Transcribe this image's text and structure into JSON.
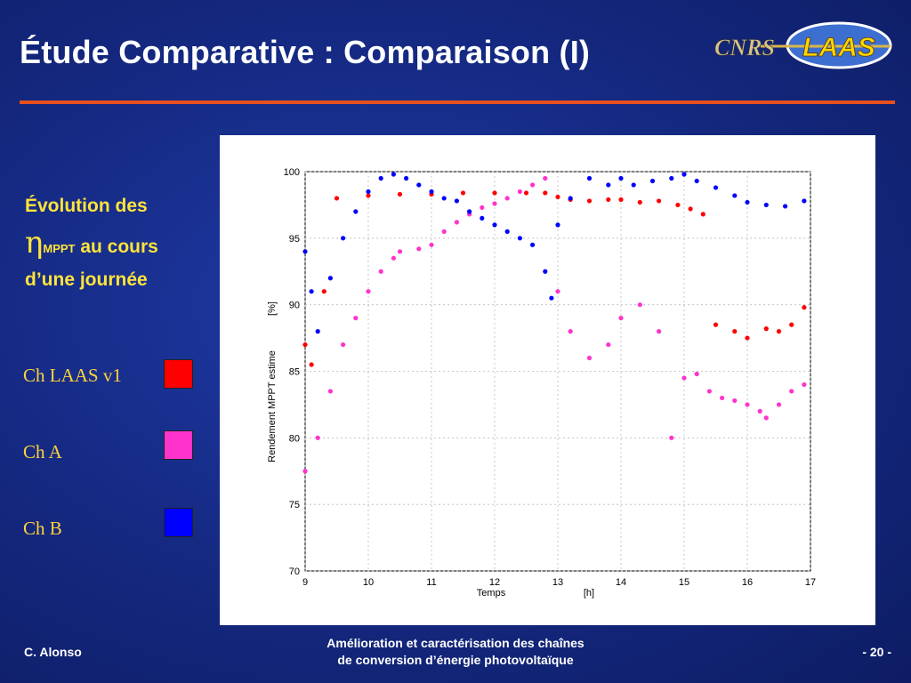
{
  "slide": {
    "title": "Étude Comparative : Comparaison (I)",
    "heading_line1": "Évolution des",
    "heading_symbol": "η",
    "heading_subscript": "MPPT",
    "heading_line2_tail": " au cours",
    "heading_line3": "d’une journée",
    "logo_text_left": "CNRS",
    "logo_text_right": "LAAS",
    "footer_author": "C. Alonso",
    "footer_title_line1": "Amélioration et caractérisation des chaînes",
    "footer_title_line2": "de conversion d’énergie photovoltaïque",
    "footer_page": "- 20 -"
  },
  "legend": [
    {
      "label": "Ch LAAS v1",
      "color": "#ff0000"
    },
    {
      "label": "Ch A",
      "color": "#ff33cc"
    },
    {
      "label": "Ch B",
      "color": "#0000ff"
    }
  ],
  "chart_data": {
    "type": "scatter",
    "xlabel": "Temps",
    "xunit": "[h]",
    "ylabel": "Rendement MPPT estime",
    "yunit": "[%]",
    "xlim": [
      9,
      17
    ],
    "ylim": [
      70,
      100
    ],
    "x_ticks": [
      9,
      10,
      11,
      12,
      13,
      14,
      15,
      16,
      17
    ],
    "y_ticks": [
      70,
      75,
      80,
      85,
      90,
      95,
      100
    ],
    "grid": true,
    "series": [
      {
        "name": "Ch LAAS v1",
        "color": "#ff0000",
        "x": [
          9.0,
          9.1,
          9.3,
          9.5,
          10.0,
          10.5,
          11.0,
          11.5,
          12.0,
          12.5,
          12.8,
          13.0,
          13.2,
          13.5,
          13.8,
          14.0,
          14.3,
          14.6,
          14.9,
          15.1,
          15.3,
          15.5,
          15.8,
          16.0,
          16.3,
          16.5,
          16.7,
          16.9
        ],
        "y": [
          87.0,
          85.5,
          91.0,
          98.0,
          98.2,
          98.3,
          98.3,
          98.4,
          98.4,
          98.4,
          98.4,
          98.1,
          97.9,
          97.8,
          97.9,
          97.9,
          97.7,
          97.8,
          97.5,
          97.2,
          96.8,
          88.5,
          88.0,
          87.5,
          88.2,
          88.0,
          88.5,
          89.8
        ]
      },
      {
        "name": "Ch A",
        "color": "#ff33cc",
        "x": [
          9.0,
          9.2,
          9.4,
          9.6,
          9.8,
          10.0,
          10.2,
          10.4,
          10.5,
          10.8,
          11.0,
          11.2,
          11.4,
          11.6,
          11.8,
          12.0,
          12.2,
          12.4,
          12.6,
          12.8,
          13.0,
          13.2,
          13.5,
          13.8,
          14.0,
          14.3,
          14.6,
          14.8,
          15.0,
          15.2,
          15.4,
          15.6,
          15.8,
          16.0,
          16.2,
          16.3,
          16.5,
          16.7,
          16.9
        ],
        "y": [
          77.5,
          80.0,
          83.5,
          87.0,
          89.0,
          91.0,
          92.5,
          93.5,
          94.0,
          94.2,
          94.5,
          95.5,
          96.2,
          96.8,
          97.3,
          97.6,
          98.0,
          98.5,
          99.0,
          99.5,
          91.0,
          88.0,
          86.0,
          87.0,
          89.0,
          90.0,
          88.0,
          80.0,
          84.5,
          84.8,
          83.5,
          83.0,
          82.8,
          82.5,
          82.0,
          81.5,
          82.5,
          83.5,
          84.0
        ]
      },
      {
        "name": "Ch B",
        "color": "#0000ff",
        "x": [
          9.0,
          9.1,
          9.2,
          9.4,
          9.6,
          9.8,
          10.0,
          10.2,
          10.4,
          10.6,
          10.8,
          11.0,
          11.2,
          11.4,
          11.6,
          11.8,
          12.0,
          12.2,
          12.4,
          12.6,
          12.8,
          12.9,
          13.0,
          13.2,
          13.5,
          13.8,
          14.0,
          14.2,
          14.5,
          14.8,
          15.0,
          15.2,
          15.5,
          15.8,
          16.0,
          16.3,
          16.6,
          16.9
        ],
        "y": [
          94.0,
          91.0,
          88.0,
          92.0,
          95.0,
          97.0,
          98.5,
          99.5,
          99.8,
          99.5,
          99.0,
          98.5,
          98.0,
          97.8,
          97.0,
          96.5,
          96.0,
          95.5,
          95.0,
          94.5,
          92.5,
          90.5,
          96.0,
          98.0,
          99.5,
          99.0,
          99.5,
          99.0,
          99.3,
          99.5,
          99.8,
          99.3,
          98.8,
          98.2,
          97.7,
          97.5,
          97.4,
          97.8
        ]
      }
    ]
  }
}
